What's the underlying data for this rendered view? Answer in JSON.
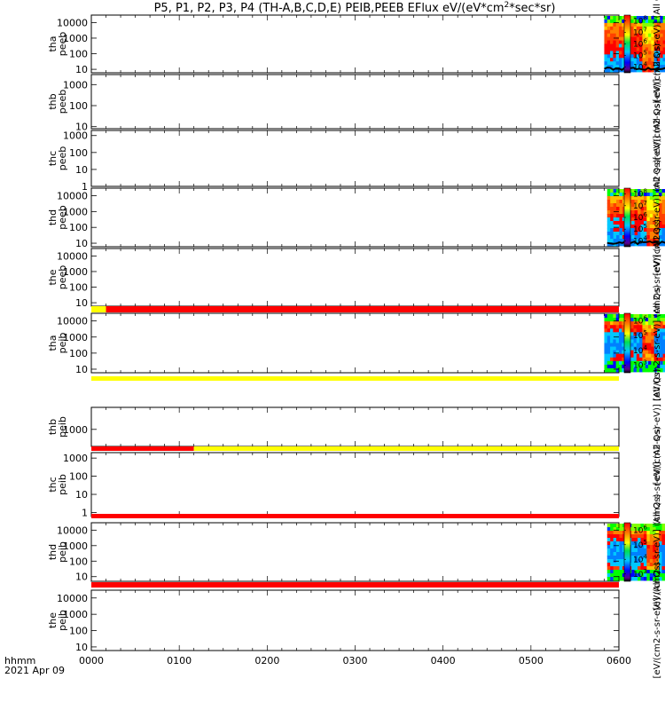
{
  "chart_data": {
    "type": "heatmap",
    "title": "P5, P1, P2, P3, P4 (TH-A,B,C,D,E) PEIB,PEEB EFlux eV/(eV*cm^2*sec*sr)",
    "time_label": "hhmm",
    "date_label": "2021 Apr 09",
    "x_ticks": [
      "0000",
      "0100",
      "0200",
      "0300",
      "0400",
      "0500",
      "0600"
    ],
    "xlim": [
      0,
      360
    ],
    "panels": [
      {
        "id": "tha-peeb",
        "label": [
          "tha",
          "peeb"
        ],
        "y_ticks": [
          "10",
          "100",
          "1000",
          "10000"
        ],
        "ylim": [
          6,
          30000
        ],
        "data_range": [
          350,
          430
        ],
        "colorbar": {
          "label": "[eV/(cm2-s-sr-eV)] (All Qs)",
          "ticks": [
            "10^4",
            "10^5",
            "10^6",
            "10^7",
            "10^8"
          ]
        }
      },
      {
        "id": "thb-peeb",
        "label": [
          "thb",
          "peeb"
        ],
        "y_ticks": [
          "10",
          "100",
          "1000"
        ],
        "ylim": [
          8,
          3000
        ],
        "data_range": null,
        "colorbar": {
          "label": "[eV/(cm2-s-sr-eV)] (All Qs)",
          "ticks": []
        }
      },
      {
        "id": "thc-peeb",
        "label": [
          "thc",
          "peeb"
        ],
        "y_ticks": [
          "1",
          "10",
          "100",
          "1000"
        ],
        "ylim": [
          1,
          2000
        ],
        "data_range": null,
        "colorbar": {
          "label": "[eV/(cm2-s-sr-eV)] (All Qs)",
          "ticks": []
        }
      },
      {
        "id": "thd-peeb",
        "label": [
          "thd",
          "peeb"
        ],
        "y_ticks": [
          "10",
          "100",
          "1000",
          "10000"
        ],
        "ylim": [
          6,
          30000
        ],
        "data_range": [
          352,
          435
        ],
        "colorbar": {
          "label": "[eV/(cm2-s-sr-eV)] (All Qs)",
          "ticks": [
            "10^4",
            "10^5",
            "10^6",
            "10^7",
            "10^8"
          ]
        }
      },
      {
        "id": "the-peeb",
        "label": [
          "the",
          "peeb"
        ],
        "y_ticks": [
          "10",
          "100",
          "1000",
          "10000"
        ],
        "ylim": [
          6,
          30000
        ],
        "data_range": null,
        "colorbar": {
          "label": "[eV/(cm2-s-sr-eV)] (All Qs)",
          "ticks": []
        }
      },
      {
        "id": "tha-peib",
        "label": [
          "tha",
          "peib"
        ],
        "y_ticks": [
          "10",
          "100",
          "1000",
          "10000"
        ],
        "ylim": [
          6,
          30000
        ],
        "data_range": [
          350,
          430
        ],
        "colorbar": {
          "label": "[eV/(cm2-s-sr-eV)] (All Qs)",
          "ticks": [
            "10^3",
            "10^4",
            "10^5",
            "10^6"
          ]
        }
      },
      {
        "id": "thb-peib",
        "label": [
          "thb",
          "peib"
        ],
        "y_ticks": [
          "1000"
        ],
        "ylim": [
          200,
          8000
        ],
        "data_range": null,
        "colorbar": {
          "label": "[eV/(cm2-s-sr-eV)] (All Qs)",
          "ticks": []
        }
      },
      {
        "id": "thc-peib",
        "label": [
          "thc",
          "peib"
        ],
        "y_ticks": [
          "1",
          "10",
          "100",
          "1000"
        ],
        "ylim": [
          0.6,
          2000
        ],
        "data_range": null,
        "colorbar": {
          "label": "[eV/(cm2-s-sr-eV)] (All Qs)",
          "ticks": []
        }
      },
      {
        "id": "thd-peib",
        "label": [
          "thd",
          "peib"
        ],
        "y_ticks": [
          "10",
          "100",
          "1000",
          "10000"
        ],
        "ylim": [
          5,
          30000
        ],
        "data_range": [
          352,
          435
        ],
        "colorbar": {
          "label": "[eV/(cm2-s-sr-eV)] (All Qs)",
          "ticks": [
            "10^3",
            "10^4",
            "10^5",
            "10^6"
          ]
        }
      },
      {
        "id": "the-peib",
        "label": [
          "the",
          "peib"
        ],
        "y_ticks": [
          "10",
          "100",
          "1000",
          "10000"
        ],
        "ylim": [
          6,
          30000
        ],
        "data_range": null,
        "colorbar": {
          "label": "[eV/(cm2-s-sr-eV)] (All Qs)",
          "ticks": []
        }
      }
    ],
    "status_bars": [
      {
        "between": [
          "the-peeb",
          "tha-peib"
        ],
        "segments": [
          {
            "from": 0,
            "to": 10,
            "color": "#ffff00"
          },
          {
            "from": 10,
            "to": 360,
            "color": "#ff0000"
          }
        ]
      },
      {
        "between": [
          "tha-peib",
          "thb-peib"
        ],
        "segments": [
          {
            "from": 0,
            "to": 360,
            "color": "#ffff00"
          }
        ]
      },
      {
        "between": [
          "thb-peib",
          "thc-peib"
        ],
        "segments": [
          {
            "from": 0,
            "to": 70,
            "color": "#ff0000"
          },
          {
            "from": 70,
            "to": 360,
            "color": "#ffff00"
          }
        ]
      },
      {
        "between": [
          "thc-peib",
          "thd-peib"
        ],
        "segments": [
          {
            "from": 0,
            "to": 360,
            "color": "#ff0000"
          }
        ]
      },
      {
        "between": [
          "thd-peib",
          "the-peib"
        ],
        "segments": [
          {
            "from": 0,
            "to": 360,
            "color": "#ff0000"
          }
        ]
      }
    ]
  }
}
